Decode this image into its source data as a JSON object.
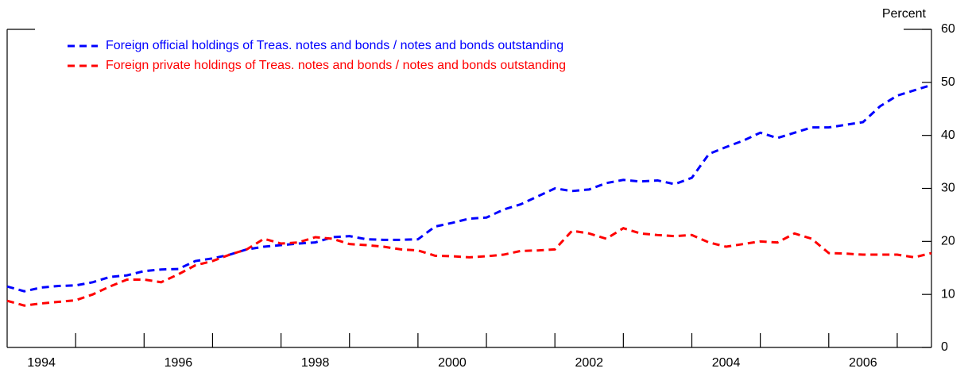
{
  "chart_data": {
    "type": "line",
    "y_axis_label": "Percent",
    "x": [
      1994,
      1994.25,
      1994.5,
      1994.75,
      1995,
      1995.25,
      1995.5,
      1995.75,
      1996,
      1996.25,
      1996.5,
      1996.75,
      1997,
      1997.25,
      1997.5,
      1997.75,
      1998,
      1998.25,
      1998.5,
      1998.75,
      1999,
      1999.25,
      1999.5,
      1999.75,
      2000,
      2000.25,
      2000.5,
      2000.75,
      2001,
      2001.25,
      2001.5,
      2001.75,
      2002,
      2002.25,
      2002.5,
      2002.75,
      2003,
      2003.25,
      2003.5,
      2003.75,
      2004,
      2004.25,
      2004.5,
      2004.75,
      2005,
      2005.25,
      2005.5,
      2005.75,
      2006,
      2006.25,
      2006.5,
      2006.75,
      2007,
      2007.25,
      2007.5
    ],
    "series": [
      {
        "name": "Foreign official holdings of Treas. notes and bonds / notes and bonds outstanding",
        "color": "#0000ff",
        "values": [
          11.5,
          10.6,
          11.3,
          11.6,
          11.7,
          12.3,
          13.3,
          13.6,
          14.4,
          14.7,
          14.8,
          16.3,
          16.8,
          17.5,
          18.5,
          19.0,
          19.3,
          19.6,
          19.8,
          20.8,
          21.0,
          20.4,
          20.3,
          20.3,
          20.4,
          22.8,
          23.5,
          24.3,
          24.5,
          26.0,
          27.0,
          28.5,
          30.0,
          29.5,
          29.8,
          31.0,
          31.6,
          31.3,
          31.5,
          30.8,
          32.0,
          36.5,
          37.8,
          39.0,
          40.5,
          39.5,
          40.5,
          41.5,
          41.5,
          42.0,
          42.5,
          45.5,
          47.5,
          48.5,
          49.5
        ]
      },
      {
        "name": "Foreign private holdings of Treas. notes and bonds / notes and bonds outstanding",
        "color": "#ff0000",
        "values": [
          8.8,
          7.9,
          8.3,
          8.6,
          8.9,
          10.0,
          11.5,
          12.8,
          12.8,
          12.3,
          13.8,
          15.5,
          16.3,
          17.5,
          18.5,
          20.5,
          19.6,
          19.8,
          20.8,
          20.5,
          19.5,
          19.3,
          19.0,
          18.5,
          18.3,
          17.3,
          17.2,
          17.0,
          17.2,
          17.5,
          18.2,
          18.3,
          18.5,
          22.0,
          21.5,
          20.5,
          22.5,
          21.5,
          21.2,
          21.0,
          21.2,
          19.8,
          19.0,
          19.5,
          20.0,
          19.8,
          21.5,
          20.5,
          17.8,
          17.7,
          17.5,
          17.5,
          17.5,
          17.0,
          17.8
        ]
      }
    ],
    "xlim": [
      1994,
      2007.5
    ],
    "xticks": [
      {
        "value": 1994.5,
        "label": "1994"
      },
      {
        "value": 1996.5,
        "label": "1996"
      },
      {
        "value": 1998.5,
        "label": "1998"
      },
      {
        "value": 2000.5,
        "label": "2000"
      },
      {
        "value": 2002.5,
        "label": "2002"
      },
      {
        "value": 2004.5,
        "label": "2004"
      },
      {
        "value": 2006.5,
        "label": "2006"
      }
    ],
    "xminor": [
      1995,
      1996,
      1997,
      1998,
      1999,
      2000,
      2001,
      2002,
      2003,
      2004,
      2005,
      2006,
      2007
    ],
    "ylim": [
      0,
      60
    ],
    "yticks": [
      0,
      10,
      20,
      30,
      40,
      50,
      60
    ],
    "legend": "upper left",
    "dashed": true
  }
}
